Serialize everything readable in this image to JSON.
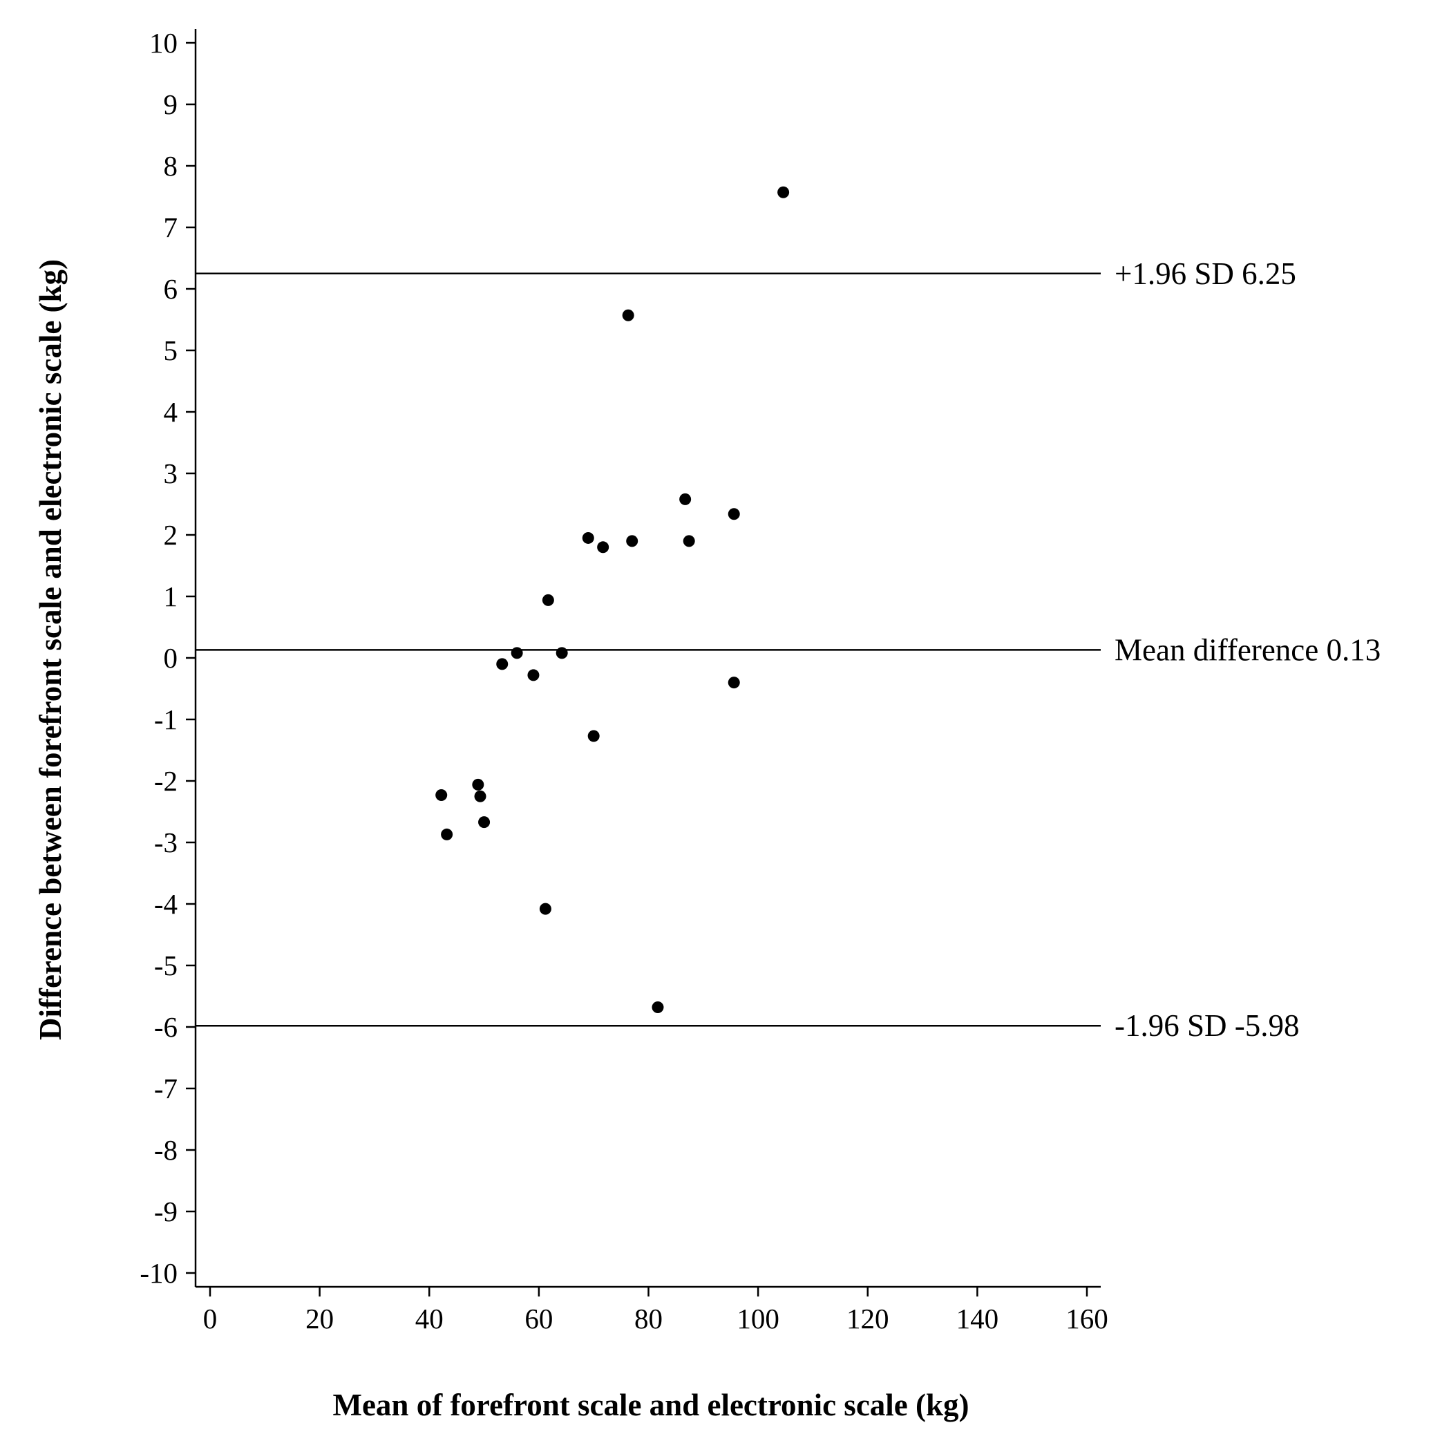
{
  "chart_data": {
    "type": "scatter",
    "xlabel": "Mean of forefront scale and electronic scale (kg)",
    "ylabel": "Difference between forefront scale and electronic scale (kg)",
    "xlim": [
      -2.5,
      162.5
    ],
    "ylim": [
      -10.25,
      10.25
    ],
    "x_ticks": [
      0,
      20,
      40,
      60,
      80,
      100,
      120,
      140,
      160
    ],
    "y_ticks": [
      10,
      9,
      8,
      7,
      6,
      5,
      4,
      3,
      2,
      1,
      0,
      -1,
      -2,
      -3,
      -4,
      -5,
      -6,
      -7,
      -8,
      -9,
      -10
    ],
    "grid": false,
    "reference_lines": [
      {
        "label": "+1.96 SD 6.25",
        "y": 6.25
      },
      {
        "label": "Mean difference 0.13",
        "y": 0.13
      },
      {
        "label": "-1.96 SD -5.98",
        "y": -5.98
      }
    ],
    "points": [
      {
        "x": 104.6,
        "y": 7.57
      },
      {
        "x": 76.3,
        "y": 5.57
      },
      {
        "x": 86.7,
        "y": 2.58
      },
      {
        "x": 95.6,
        "y": 2.34
      },
      {
        "x": 69.0,
        "y": 1.95
      },
      {
        "x": 77.0,
        "y": 1.9
      },
      {
        "x": 87.4,
        "y": 1.9
      },
      {
        "x": 71.7,
        "y": 1.8
      },
      {
        "x": 61.7,
        "y": 0.94
      },
      {
        "x": 56.0,
        "y": 0.08
      },
      {
        "x": 64.2,
        "y": 0.08
      },
      {
        "x": 53.3,
        "y": -0.1
      },
      {
        "x": 59.0,
        "y": -0.28
      },
      {
        "x": 95.6,
        "y": -0.4
      },
      {
        "x": 70.0,
        "y": -1.27
      },
      {
        "x": 48.9,
        "y": -2.06
      },
      {
        "x": 42.2,
        "y": -2.23
      },
      {
        "x": 49.3,
        "y": -2.25
      },
      {
        "x": 50.0,
        "y": -2.67
      },
      {
        "x": 43.2,
        "y": -2.87
      },
      {
        "x": 61.2,
        "y": -4.08
      },
      {
        "x": 81.7,
        "y": -5.68
      }
    ]
  }
}
